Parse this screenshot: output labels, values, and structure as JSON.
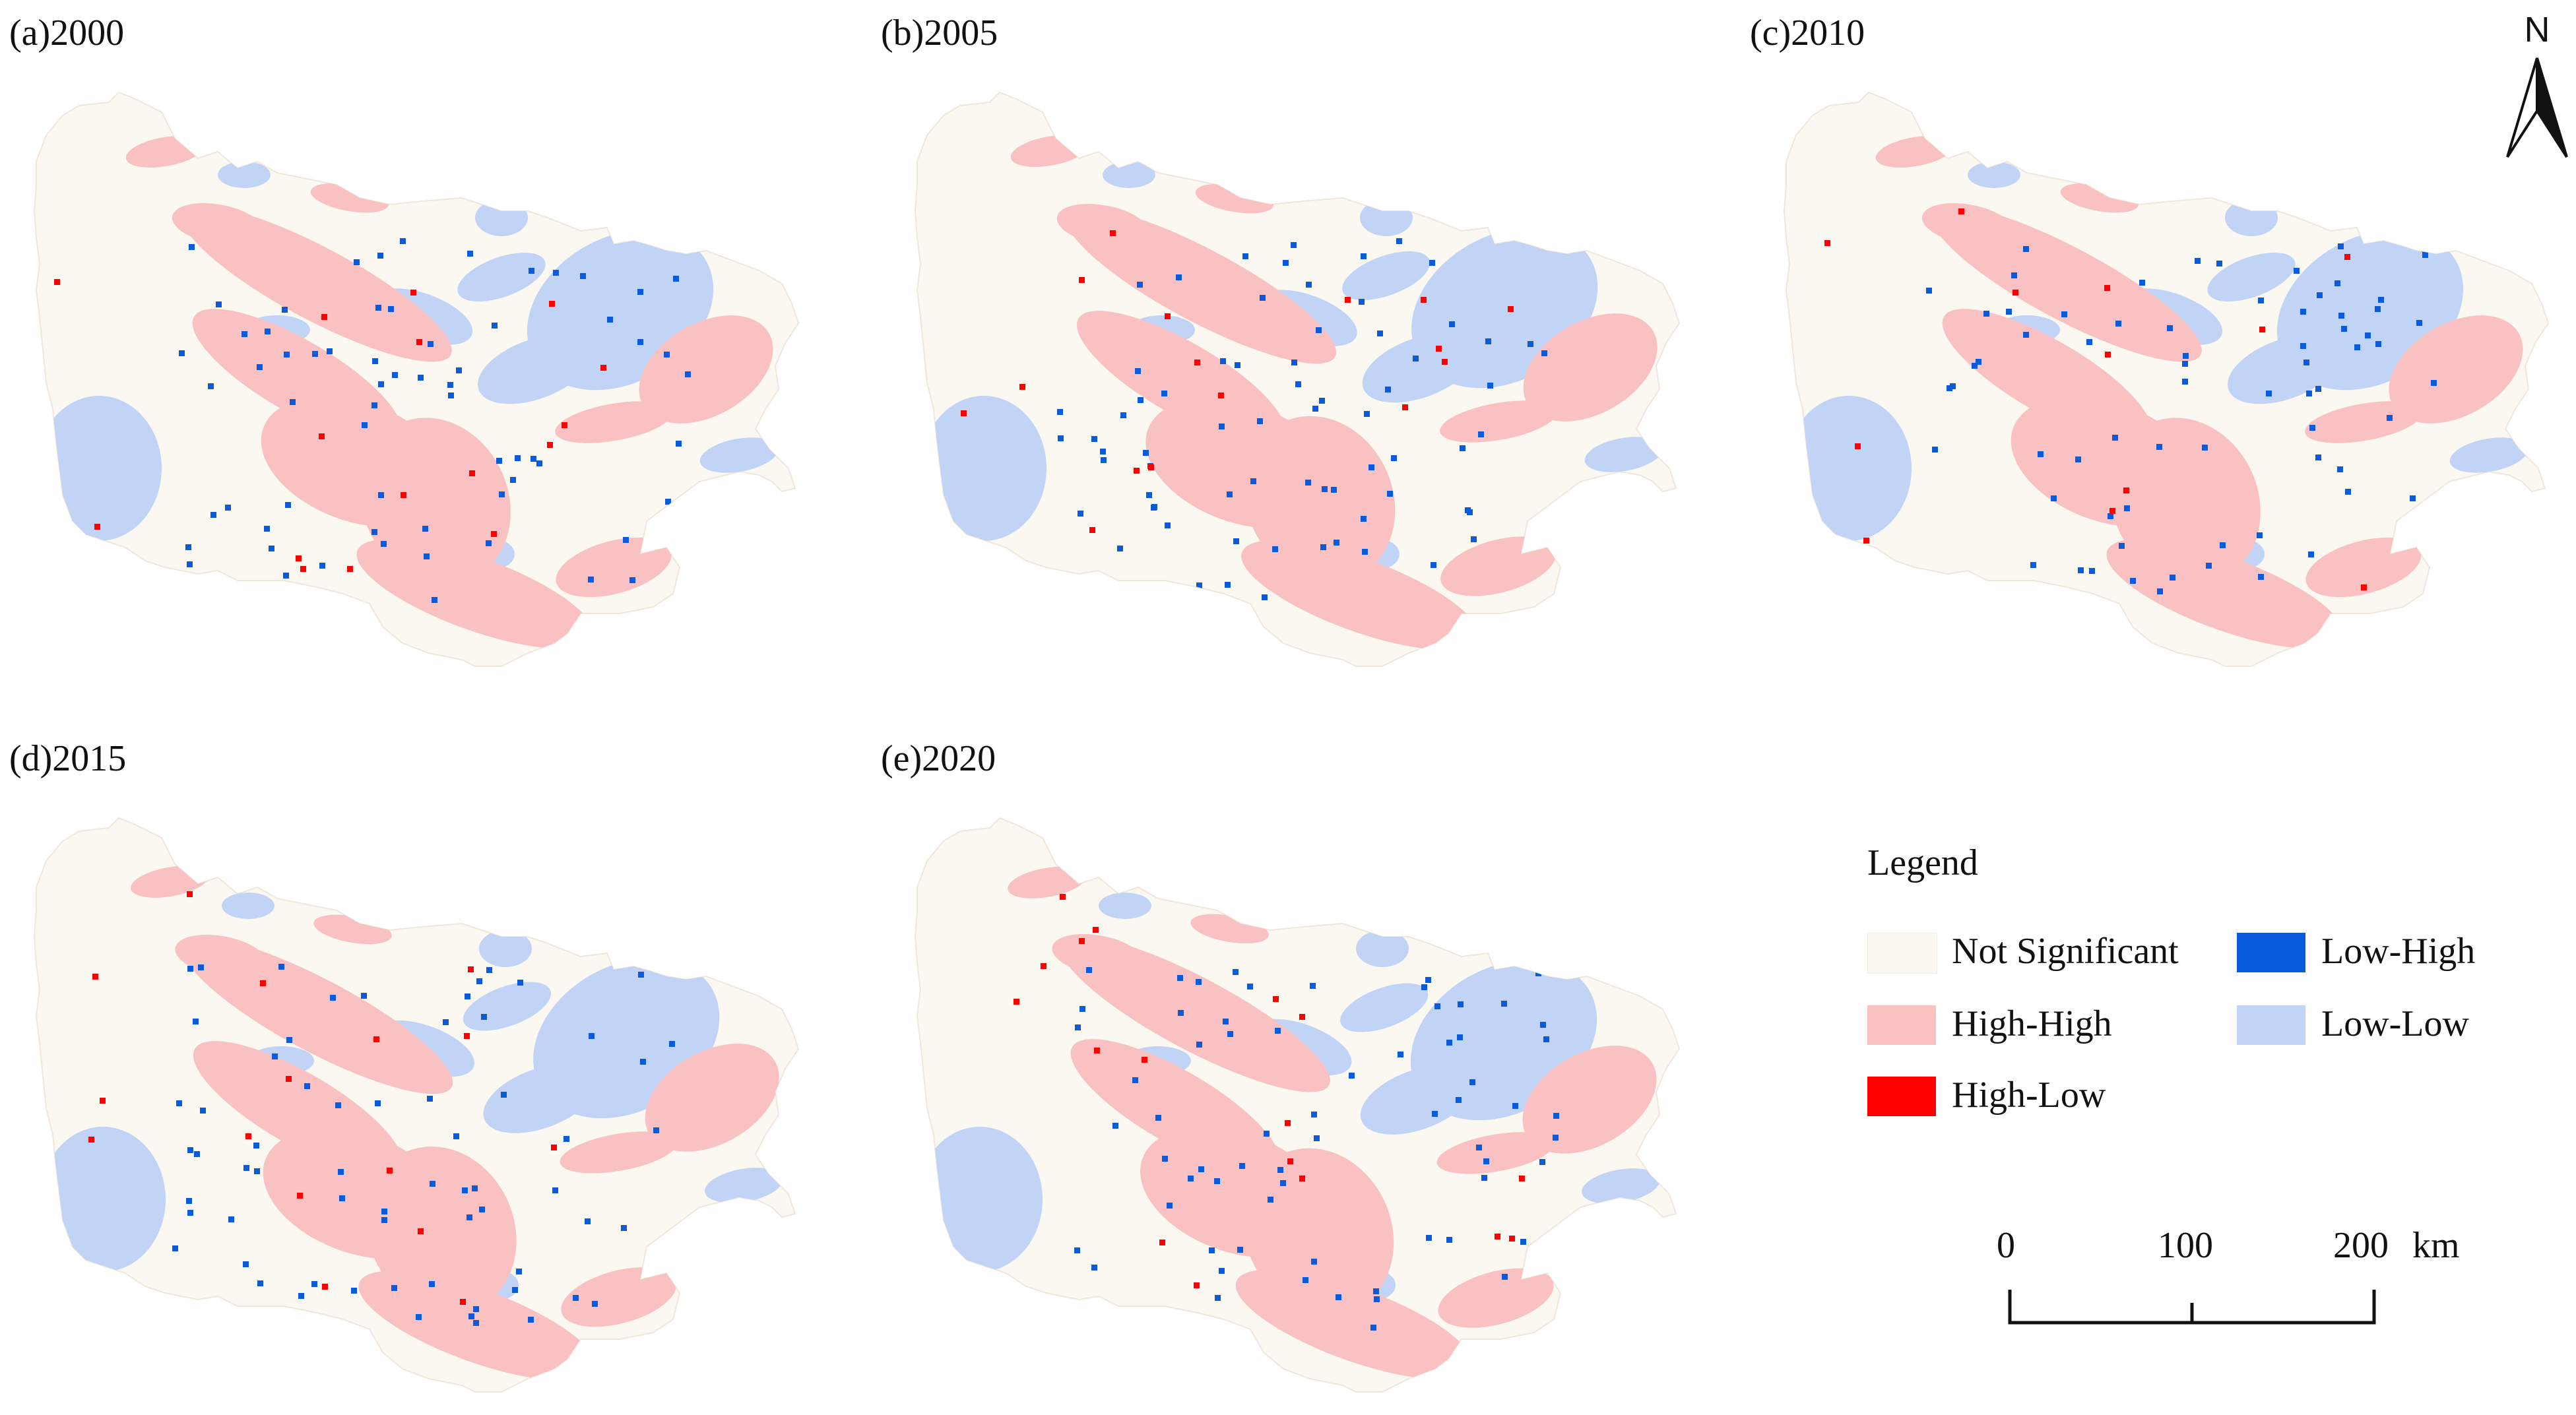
{
  "panels": [
    {
      "label": "(a)2000"
    },
    {
      "label": "(b)2005"
    },
    {
      "label": "(c)2010"
    },
    {
      "label": "(d)2015"
    },
    {
      "label": "(e)2020"
    }
  ],
  "north_arrow": {
    "letter": "N"
  },
  "legend": {
    "title": "Legend",
    "items": [
      {
        "label": "Not Significant",
        "color": "#fbf8f2"
      },
      {
        "label": "High-High",
        "color": "#f9c1c1"
      },
      {
        "label": "High-Low",
        "color": "#ff0000"
      },
      {
        "label": "Low-High",
        "color": "#0a5bdc"
      },
      {
        "label": "Low-Low",
        "color": "#c1d4f6"
      }
    ]
  },
  "scale_bar": {
    "ticks": [
      "0",
      "100",
      "200"
    ],
    "unit": "km"
  }
}
